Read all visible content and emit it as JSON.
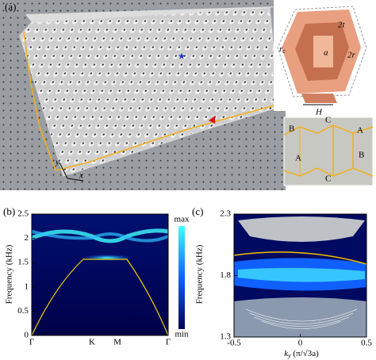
{
  "panel_a": {
    "label": "(a)",
    "unit_cell": {
      "thickness": "2t",
      "radius": "r",
      "radius_sub": "c",
      "lattice": "a",
      "rod": "2r",
      "height": "H"
    },
    "inset": [
      "A",
      "B",
      "C",
      "A",
      "B",
      "C"
    ],
    "axes": [
      "x",
      "y"
    ]
  },
  "panel_b": {
    "label": "(b)",
    "ylabel": "Frequency (kHz)",
    "yticks": [
      "0",
      "0.5",
      "1",
      "1.5",
      "2",
      "2.5"
    ],
    "xticks": [
      "Γ",
      "K",
      "M",
      "Γ"
    ],
    "colorbar": [
      "max",
      "min"
    ]
  },
  "panel_c": {
    "label": "(c)",
    "ylabel": "Frequency (kHz)",
    "yticks": [
      "1.3",
      "1.8",
      "2.3"
    ],
    "xticks": [
      "-0.5",
      "0",
      "0.5"
    ],
    "xlabel_main": "k",
    "xlabel_sub": "y",
    "xlabel_rest": " (π/√3a)"
  }
}
